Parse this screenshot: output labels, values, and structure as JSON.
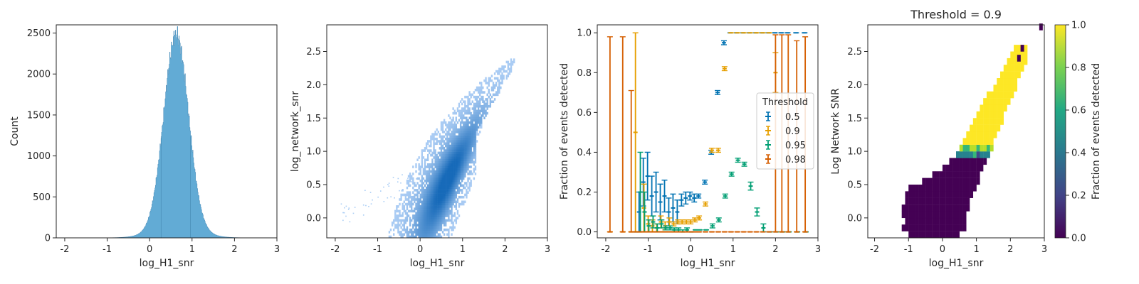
{
  "chart_data": [
    {
      "type": "bar",
      "subtype": "histogram",
      "xlabel": "log_H1_snr",
      "ylabel": "Count",
      "xlim": [
        -2.2,
        3.0
      ],
      "ylim": [
        0,
        2600
      ],
      "xticks": [
        "-2",
        "-1",
        "0",
        "1",
        "2",
        "3"
      ],
      "yticks": [
        "0",
        "500",
        "1000",
        "1500",
        "2000",
        "2500"
      ],
      "color": "#4c9fcf",
      "distribution": {
        "mean": 0.62,
        "sd": 0.29,
        "peak": 2480,
        "tail_sd": 0.55,
        "tail_weight": 0.04,
        "range": [
          -2.0,
          2.8
        ]
      }
    },
    {
      "type": "heatmap",
      "subtype": "density-2d",
      "xlabel": "log_H1_snr",
      "ylabel": "log_network_snr",
      "xlim": [
        -2.2,
        3.0
      ],
      "ylim": [
        -0.3,
        2.9
      ],
      "xticks": [
        "-2",
        "-1",
        "0",
        "1",
        "2",
        "3"
      ],
      "yticks": [
        "0.0",
        "0.5",
        "1.0",
        "1.5",
        "2.0",
        "2.5"
      ],
      "color": "#1f77d4"
    },
    {
      "type": "scatter",
      "subtype": "errorbar",
      "xlabel": "log_H1_snr",
      "ylabel": "Fraction of events detected",
      "xlim": [
        -2.2,
        3.0
      ],
      "ylim": [
        -0.03,
        1.04
      ],
      "xticks": [
        "-2",
        "-1",
        "0",
        "1",
        "2",
        "3"
      ],
      "yticks": [
        "0.0",
        "0.2",
        "0.4",
        "0.6",
        "0.8",
        "1.0"
      ],
      "legend_title": "Threshold",
      "legend_position": "center-right",
      "x": [
        -1.9,
        -1.6,
        -1.4,
        -1.3,
        -1.2,
        -1.1,
        -1.0,
        -0.9,
        -0.8,
        -0.7,
        -0.6,
        -0.5,
        -0.4,
        -0.3,
        -0.2,
        -0.1,
        0.0,
        0.1,
        0.2,
        0.35,
        0.5,
        0.65,
        0.8,
        0.95,
        1.1,
        1.25,
        1.4,
        1.55,
        1.7,
        1.85,
        2.0,
        2.15,
        2.3,
        2.5,
        2.7
      ],
      "series": [
        {
          "name": "0.5",
          "color": "#0072b2",
          "values": [
            null,
            null,
            null,
            null,
            0.1,
            0.25,
            0.28,
            0.18,
            0.2,
            0.15,
            0.18,
            0.1,
            0.12,
            0.1,
            0.16,
            0.17,
            0.18,
            0.17,
            0.18,
            0.25,
            0.4,
            0.7,
            0.95,
            1.0,
            1.0,
            1.0,
            1.0,
            1.0,
            1.0,
            1.0,
            1.0,
            1.0,
            1.0,
            1.0,
            1.0
          ],
          "errors": [
            null,
            null,
            null,
            null,
            0.1,
            0.12,
            0.12,
            0.1,
            0.1,
            0.09,
            0.08,
            0.07,
            0.07,
            0.06,
            0.03,
            0.03,
            0.02,
            0.02,
            0.01,
            0.01,
            0.01,
            0.01,
            0.01,
            0.0,
            0.0,
            0.0,
            0.0,
            0.0,
            0.0,
            0.0,
            0.0,
            0.0,
            0.0,
            0.0,
            0.0
          ]
        },
        {
          "name": "0.9",
          "color": "#e69f00",
          "values": [
            0.0,
            0.0,
            0.0,
            0.5,
            0.0,
            0.12,
            0.04,
            0.03,
            0.02,
            0.05,
            0.03,
            0.05,
            0.04,
            0.05,
            0.05,
            0.05,
            0.05,
            0.06,
            0.07,
            0.14,
            0.41,
            0.41,
            0.82,
            1.0,
            1.0,
            1.0,
            1.0,
            1.0,
            1.0,
            1.0,
            0.8,
            0.0,
            0.0,
            0.0,
            0.0
          ],
          "errors": [
            null,
            null,
            null,
            0.5,
            0.0,
            0.12,
            0.04,
            0.03,
            0.02,
            0.03,
            0.02,
            0.02,
            0.01,
            0.01,
            0.01,
            0.01,
            0.01,
            0.01,
            0.01,
            0.01,
            0.01,
            0.01,
            0.01,
            0.0,
            0.0,
            0.0,
            0.0,
            0.0,
            0.0,
            0.0,
            0.1,
            0.0,
            0.0,
            0.0,
            0.0
          ]
        },
        {
          "name": "0.95",
          "color": "#009e73",
          "values": [
            null,
            null,
            null,
            0.0,
            0.2,
            0.1,
            0.03,
            0.05,
            0.02,
            0.04,
            0.02,
            0.02,
            0.01,
            0.01,
            0.0,
            0.01,
            0.0,
            0.01,
            0.01,
            0.01,
            0.03,
            0.06,
            0.18,
            0.29,
            0.36,
            0.34,
            0.23,
            0.1,
            0.02,
            0.0,
            0.0,
            0.0,
            0.0,
            0.0,
            0.0
          ],
          "errors": [
            null,
            null,
            null,
            0.0,
            0.2,
            0.1,
            0.03,
            0.03,
            0.02,
            0.02,
            0.01,
            0.01,
            0.01,
            0.01,
            0.01,
            0.01,
            0.0,
            0.0,
            0.0,
            0.0,
            0.01,
            0.01,
            0.01,
            0.01,
            0.01,
            0.01,
            0.02,
            0.02,
            0.02,
            0.0,
            0.0,
            0.0,
            0.0,
            0.0,
            0.0
          ]
        },
        {
          "name": "0.98",
          "color": "#d55e00",
          "values": [
            0.0,
            0.0,
            0.0,
            0.0,
            0.0,
            0.0,
            0.0,
            0.0,
            0.0,
            0.0,
            0.0,
            0.0,
            0.0,
            0.0,
            0.0,
            0.0,
            0.0,
            0.0,
            0.0,
            0.0,
            0.0,
            0.0,
            0.0,
            0.0,
            0.0,
            0.0,
            0.0,
            0.0,
            0.0,
            0.0,
            0.0,
            0.0,
            0.0,
            0.0,
            0.0
          ],
          "errors_up": [
            0.98,
            0.98,
            0.71,
            0.0,
            0.0,
            0.0,
            0.0,
            0.0,
            0.0,
            0.0,
            0.0,
            0.0,
            0.0,
            0.0,
            0.0,
            0.0,
            0.0,
            0.0,
            0.0,
            0.0,
            0.0,
            0.0,
            0.0,
            0.0,
            0.0,
            0.0,
            0.0,
            0.0,
            0.0,
            0.0,
            0.99,
            0.99,
            0.99,
            0.96,
            0.98
          ]
        }
      ]
    },
    {
      "type": "heatmap",
      "title": "Threshold = 0.9",
      "xlabel": "log_H1_snr",
      "ylabel": "Log Network SNR",
      "xlim": [
        -2.2,
        3.0
      ],
      "ylim": [
        -0.3,
        2.9
      ],
      "xticks": [
        "-2",
        "-1",
        "0",
        "1",
        "2",
        "3"
      ],
      "yticks": [
        "0.0",
        "0.5",
        "1.0",
        "1.5",
        "2.0",
        "2.5"
      ],
      "colorbar": {
        "label": "Fraction of events detected",
        "range": [
          0.0,
          1.0
        ],
        "ticks": [
          "0.0",
          "0.2",
          "0.4",
          "0.6",
          "0.8",
          "1.0"
        ],
        "colormap": "viridis"
      }
    }
  ]
}
